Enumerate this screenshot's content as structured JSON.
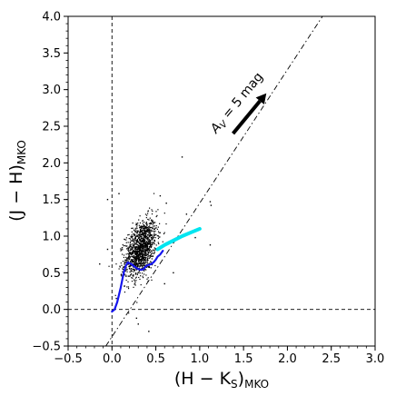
{
  "chart_data": {
    "type": "scatter",
    "xlabel": "(H − K",
    "xlabel_sub": "S",
    "xlabel_close": ")",
    "xlabel_sub2": "MKO",
    "ylabel": "(J − H)",
    "ylabel_sub": "MKO",
    "xlim": [
      -0.5,
      3.0
    ],
    "ylim": [
      -0.5,
      4.0
    ],
    "xticks": [
      -0.5,
      0.0,
      0.5,
      1.0,
      1.5,
      2.0,
      2.5,
      3.0
    ],
    "xtick_labels": [
      "−0.5",
      "0.0",
      "0.5",
      "1.0",
      "1.5",
      "2.0",
      "2.5",
      "3.0"
    ],
    "yticks": [
      -0.5,
      0.0,
      0.5,
      1.0,
      1.5,
      2.0,
      2.5,
      3.0,
      3.5,
      4.0
    ],
    "ytick_labels": [
      "−0.5",
      "0.0",
      "0.5",
      "1.0",
      "1.5",
      "2.0",
      "2.5",
      "3.0",
      "3.5",
      "4.0"
    ],
    "reference_lines": [
      {
        "name": "x-zero",
        "orientation": "vertical",
        "x": 0.0,
        "style": "dashed"
      },
      {
        "name": "y-zero",
        "orientation": "horizontal",
        "y": 0.0,
        "style": "dashed"
      },
      {
        "name": "reddening-line",
        "from": [
          -0.07,
          -0.5
        ],
        "to": [
          2.4,
          4.0
        ],
        "style": "dashdot"
      }
    ],
    "reddening_vector": {
      "label": "A",
      "label_sub": "V",
      "label_value": " = 5 mag",
      "from": [
        1.38,
        2.4
      ],
      "to": [
        1.76,
        2.95
      ]
    },
    "scatter_cluster": {
      "color": "#000000",
      "count": 1300,
      "center": [
        0.33,
        0.83
      ],
      "spread": [
        0.09,
        0.18
      ],
      "outliers": [
        [
          0.8,
          2.08
        ],
        [
          1.12,
          1.47
        ],
        [
          1.13,
          1.42
        ],
        [
          -0.05,
          1.5
        ],
        [
          -0.14,
          0.62
        ],
        [
          0.55,
          1.55
        ],
        [
          0.08,
          1.58
        ],
        [
          0.62,
          1.45
        ],
        [
          0.95,
          0.98
        ],
        [
          1.12,
          0.88
        ],
        [
          0.3,
          -0.2
        ],
        [
          0.42,
          -0.3
        ],
        [
          0.28,
          -0.12
        ],
        [
          0.05,
          0.15
        ],
        [
          -0.05,
          0.82
        ],
        [
          0.7,
          0.5
        ],
        [
          0.85,
          1.3
        ],
        [
          0.6,
          0.35
        ]
      ]
    },
    "series": [
      {
        "name": "",
        "type": "line",
        "color": "#1515ee",
        "x": [
          0.0,
          0.03,
          0.06,
          0.08,
          0.1,
          0.12,
          0.14,
          0.16,
          0.18,
          0.22,
          0.26,
          0.3,
          0.33,
          0.36,
          0.38,
          0.4,
          0.45,
          0.48,
          0.5,
          0.52,
          0.55,
          0.58
        ],
        "y": [
          -0.03,
          0.0,
          0.1,
          0.2,
          0.3,
          0.42,
          0.53,
          0.6,
          0.64,
          0.62,
          0.58,
          0.55,
          0.54,
          0.55,
          0.58,
          0.6,
          0.62,
          0.65,
          0.68,
          0.72,
          0.75,
          0.8
        ]
      },
      {
        "name": "",
        "type": "line",
        "color": "#00e5f0",
        "x": [
          0.52,
          0.6,
          0.7,
          0.8,
          0.9,
          1.0
        ],
        "y": [
          0.82,
          0.88,
          0.94,
          1.0,
          1.05,
          1.1
        ]
      }
    ]
  }
}
